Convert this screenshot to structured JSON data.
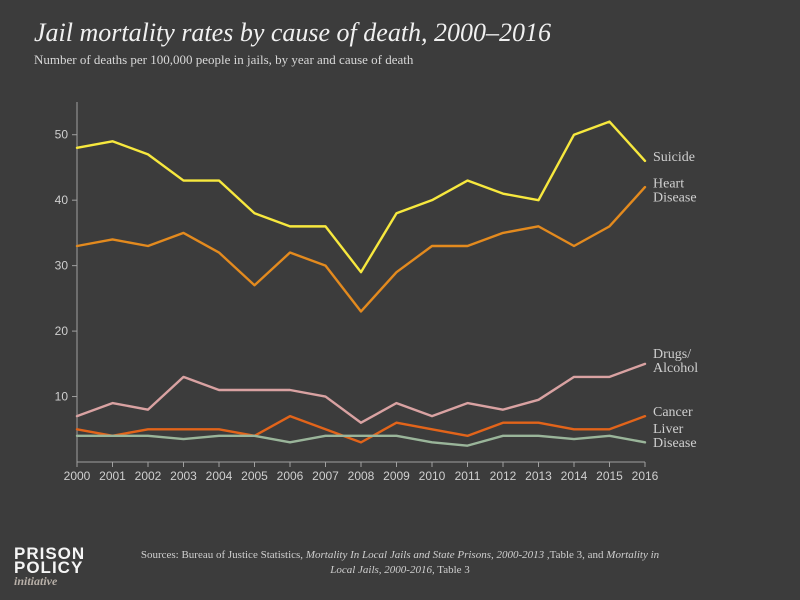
{
  "title": "Jail mortality rates by cause of death, 2000–2016",
  "subtitle": "Number of deaths per 100,000 people in jails, by year and cause of death",
  "source_prefix": "Sources: Bureau of Justice Statistics, ",
  "source_em1": "Mortality In Local Jails and State Prisons, 2000-2013",
  "source_mid": " ,Table 3, and ",
  "source_em2": "Mortality in Local Jails, 2000-2016",
  "source_suffix": ", Table 3",
  "logo_line1": "PRISON",
  "logo_line2": "POLICY",
  "logo_init": "initiative",
  "chart": {
    "type": "line",
    "background_color": "#3c3c3c",
    "axis_color": "#a0a0a0",
    "grid_color": "#a0a0a0",
    "text_color": "#cfcfcf",
    "label_fontsize": 12,
    "series_label_fontsize": 14,
    "xlim": [
      2000,
      2016
    ],
    "ylim": [
      0,
      55
    ],
    "ytick_step": 10,
    "ytick_min": 10,
    "ytick_max": 50,
    "xtick_step": 1,
    "line_width": 2.4,
    "years": [
      2000,
      2001,
      2002,
      2003,
      2004,
      2005,
      2006,
      2007,
      2008,
      2009,
      2010,
      2011,
      2012,
      2013,
      2014,
      2015,
      2016
    ],
    "series": [
      {
        "name": "Suicide",
        "color": "#f7e83e",
        "label_y": 46,
        "values": [
          48,
          49,
          47,
          43,
          43,
          38,
          36,
          36,
          29,
          38,
          40,
          43,
          41,
          40,
          50,
          52,
          46
        ]
      },
      {
        "name": "Heart Disease",
        "color": "#e38a1e",
        "label_y": 41,
        "label_lines": [
          "Heart",
          "Disease"
        ],
        "values": [
          33,
          34,
          33,
          35,
          32,
          27,
          32,
          30,
          23,
          29,
          33,
          33,
          35,
          36,
          33,
          36,
          42
        ]
      },
      {
        "name": "Drugs/Alcohol",
        "color": "#d9a2a2",
        "label_y": 15,
        "label_lines": [
          "Drugs/",
          "Alcohol"
        ],
        "values": [
          7,
          9,
          8,
          13,
          11,
          11,
          11,
          10,
          6,
          9,
          7,
          9,
          8,
          9.5,
          13,
          13,
          15
        ]
      },
      {
        "name": "Cancer",
        "color": "#e2641a",
        "label_y": 7,
        "values": [
          5,
          4,
          5,
          5,
          5,
          4,
          7,
          5,
          3,
          6,
          5,
          4,
          6,
          6,
          5,
          5,
          7
        ]
      },
      {
        "name": "Liver Disease",
        "color": "#9ab59a",
        "label_y": 3.5,
        "label_lines": [
          "Liver",
          "Disease"
        ],
        "values": [
          4,
          4,
          4,
          3.5,
          4,
          4,
          3,
          4,
          4,
          4,
          3,
          2.5,
          4,
          4,
          3.5,
          4,
          3
        ]
      }
    ]
  }
}
